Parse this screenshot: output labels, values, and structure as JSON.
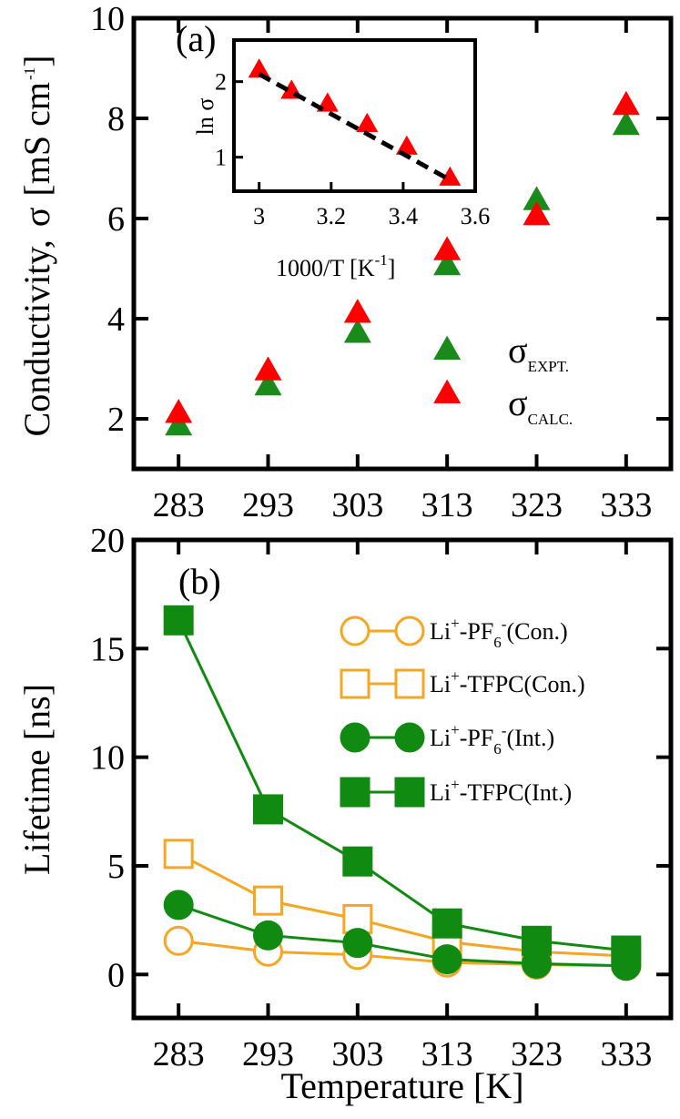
{
  "chart_data": [
    {
      "panel": "(a)",
      "type": "scatter",
      "ylabel": "Conductivity,",
      "ylabel_symbol": "σ",
      "ylabel_unit": "[mS cm",
      "ylabel_unit_sup": "-1",
      "ylabel_unit_close": "]",
      "ylim": [
        1,
        10
      ],
      "yticks": [
        2,
        4,
        6,
        8,
        10
      ],
      "xticks": [
        283,
        293,
        303,
        313,
        323,
        333
      ],
      "xlim": [
        278,
        338
      ],
      "grid": false,
      "legend_position": "right",
      "series": [
        {
          "name": "σ",
          "subscript": "EXPT.",
          "color": "#1a8a1a",
          "marker": "triangle",
          "x": [
            283,
            293,
            303,
            323,
            333
          ],
          "values": [
            1.85,
            2.65,
            3.7,
            6.35,
            7.85
          ]
        },
        {
          "name": "σ",
          "subscript": "CALC.",
          "color": "#ff0000",
          "marker": "triangle",
          "x": [
            283,
            293,
            303,
            323,
            333
          ],
          "values": [
            2.1,
            2.95,
            4.1,
            6.05,
            8.25
          ]
        }
      ],
      "extra_points": [
        {
          "color": "#1a8a1a",
          "x": 313,
          "y": 5.05
        },
        {
          "color": "#ff0000",
          "x": 313,
          "y": 5.35
        }
      ],
      "inset": {
        "type": "scatter",
        "xlabel": "1000/T [K",
        "xlabel_sup": "-1",
        "xlabel_close": "]",
        "ylabel": "ln σ",
        "xlim": [
          2.93,
          3.6
        ],
        "ylim": [
          0.55,
          2.55
        ],
        "xticks": [
          3,
          3.2,
          3.4,
          3.6
        ],
        "xtick_labels": [
          "3",
          "3.2",
          "3.4",
          "3.6"
        ],
        "yticks": [
          1,
          2
        ],
        "points_x": [
          3.0,
          3.09,
          3.19,
          3.3,
          3.41,
          3.53
        ],
        "points_y": [
          2.15,
          1.87,
          1.7,
          1.43,
          1.13,
          0.72
        ],
        "fit": {
          "x": [
            3.0,
            3.53
          ],
          "y": [
            2.1,
            0.7
          ]
        },
        "marker_color": "#ff0000",
        "fit_color": "#000000"
      }
    },
    {
      "panel": "(b)",
      "type": "line",
      "xlabel": "Temperature [K]",
      "ylabel": "Lifetime [ns]",
      "categories": [
        283,
        293,
        303,
        313,
        323,
        333
      ],
      "xlim": [
        278,
        338
      ],
      "ylim": [
        -2,
        20
      ],
      "yticks": [
        0,
        5,
        10,
        15,
        20
      ],
      "grid": false,
      "legend_position": "top-right",
      "series": [
        {
          "name": "Li",
          "label_sup": "+",
          "label_mid": "-PF",
          "label_sub": "6",
          "label_sup2": "-",
          "label_end": "(Con.)",
          "color": "#f5a623",
          "marker": "circle",
          "filled": false,
          "values": [
            1.55,
            1.05,
            0.9,
            0.55,
            0.45,
            0.4
          ]
        },
        {
          "name": "Li",
          "label_sup": "+",
          "label_mid": "-TFPC(Con.)",
          "label_sub": "",
          "label_sup2": "",
          "label_end": "",
          "color": "#f5a623",
          "marker": "square",
          "filled": false,
          "values": [
            5.55,
            3.4,
            2.55,
            1.5,
            1.05,
            0.85
          ]
        },
        {
          "name": "Li",
          "label_sup": "+",
          "label_mid": "-PF",
          "label_sub": "6",
          "label_sup2": "-",
          "label_end": "(Int.)",
          "color": "#118a11",
          "marker": "circle",
          "filled": true,
          "values": [
            3.2,
            1.8,
            1.45,
            0.7,
            0.5,
            0.4
          ]
        },
        {
          "name": "Li",
          "label_sup": "+",
          "label_mid": "-TFPC(Int.)",
          "label_sub": "",
          "label_sup2": "",
          "label_end": "",
          "color": "#118a11",
          "marker": "square",
          "filled": true,
          "values": [
            16.3,
            7.6,
            5.2,
            2.35,
            1.55,
            1.1
          ]
        }
      ]
    }
  ]
}
